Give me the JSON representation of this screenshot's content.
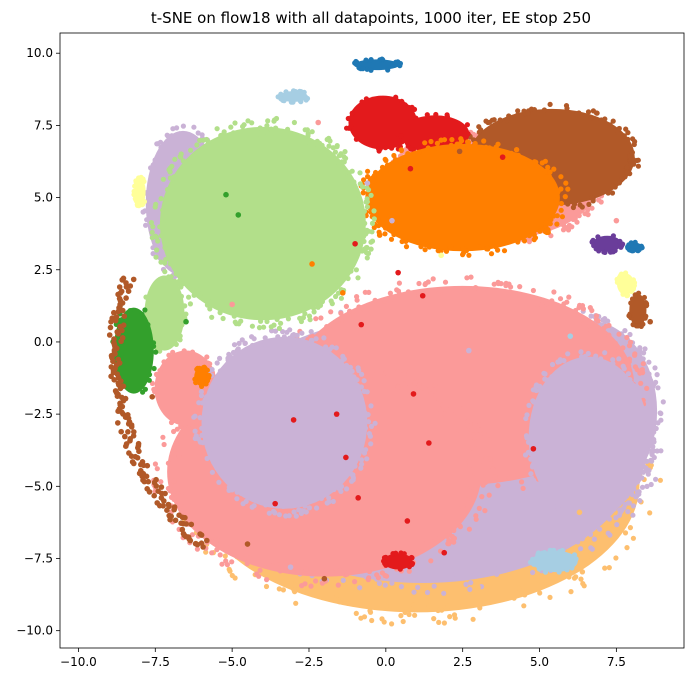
{
  "chart_data": {
    "type": "scatter",
    "title": "t-SNE on flow18 with all datapoints, 1000 iter, EE stop 250",
    "xlabel": "",
    "ylabel": "",
    "xlim": [
      -10.6,
      9.7
    ],
    "ylim": [
      -10.6,
      10.7
    ],
    "x_ticks": [
      -10,
      -7.5,
      -5,
      -2.5,
      0,
      2.5,
      5,
      7.5
    ],
    "x_tick_labels": [
      "−10.0",
      "−7.5",
      "−5.0",
      "−2.5",
      "0.0",
      "2.5",
      "5.0",
      "7.5"
    ],
    "y_ticks": [
      10,
      7.5,
      5,
      2.5,
      0,
      -2.5,
      -5,
      -7.5,
      -10
    ],
    "y_tick_labels": [
      "10.0",
      "7.5",
      "5.0",
      "2.5",
      "0.0",
      "−2.5",
      "−5.0",
      "−7.5",
      "−10.0"
    ],
    "grid": false,
    "legend": "none",
    "series": [
      {
        "name": "light-orange",
        "color": "#fdbf6f",
        "regions": [
          {
            "type": "ellipse",
            "cx": 1.0,
            "cy": -4.9,
            "rx": 7.8,
            "ry": 4.8
          }
        ]
      },
      {
        "name": "lavender-outer",
        "color": "#cab2d6",
        "regions": [
          {
            "type": "ellipse",
            "cx": 1.2,
            "cy": -3.7,
            "rx": 7.6,
            "ry": 5.0
          },
          {
            "type": "ellipse",
            "cx": 6.5,
            "cy": -2.4,
            "rx": 2.5,
            "ry": 3.4
          },
          {
            "type": "ellipse",
            "cx": -6.6,
            "cy": 4.8,
            "rx": 1.3,
            "ry": 2.7
          }
        ]
      },
      {
        "name": "pink",
        "color": "#fb9a99",
        "regions": [
          {
            "type": "ellipse",
            "cx": 2.5,
            "cy": -1.5,
            "rx": 6.0,
            "ry": 3.7
          },
          {
            "type": "ellipse",
            "cx": -2.0,
            "cy": -4.5,
            "rx": 5.5,
            "ry": 3.9
          },
          {
            "type": "ellipse",
            "cx": 3.5,
            "cy": 5.4,
            "rx": 3.6,
            "ry": 2.0
          },
          {
            "type": "ellipse",
            "cx": -6.5,
            "cy": -1.6,
            "rx": 1.1,
            "ry": 1.4
          }
        ]
      },
      {
        "name": "lavender-inner",
        "color": "#cab2d6",
        "regions": [
          {
            "type": "ellipse",
            "cx": -3.3,
            "cy": -2.8,
            "rx": 2.9,
            "ry": 3.2
          },
          {
            "type": "ellipse",
            "cx": 6.6,
            "cy": -3.3,
            "rx": 2.1,
            "ry": 3.0
          }
        ]
      },
      {
        "name": "brown",
        "color": "#b15928",
        "regions": [
          {
            "type": "ellipse",
            "cx": 5.4,
            "cy": 6.4,
            "rx": 2.9,
            "ry": 1.8
          },
          {
            "type": "ellipse",
            "cx": 8.2,
            "cy": 1.1,
            "rx": 0.3,
            "ry": 0.6
          }
        ]
      },
      {
        "name": "red",
        "color": "#e31a1c",
        "regions": [
          {
            "type": "ellipse",
            "cx": -0.1,
            "cy": 7.6,
            "rx": 1.2,
            "ry": 1.0
          },
          {
            "type": "ellipse",
            "cx": 1.6,
            "cy": 7.2,
            "rx": 1.2,
            "ry": 0.7
          },
          {
            "type": "ellipse",
            "cx": 0.4,
            "cy": -7.6,
            "rx": 0.5,
            "ry": 0.3
          }
        ]
      },
      {
        "name": "orange",
        "color": "#ff7f00",
        "regions": [
          {
            "type": "ellipse",
            "cx": 2.5,
            "cy": 5.0,
            "rx": 3.4,
            "ry": 2.0
          },
          {
            "type": "ellipse",
            "cx": -6.0,
            "cy": -1.2,
            "rx": 0.25,
            "ry": 0.35
          }
        ]
      },
      {
        "name": "light-green",
        "color": "#b2df8a",
        "regions": [
          {
            "type": "ellipse",
            "cx": -4.0,
            "cy": 4.1,
            "rx": 3.6,
            "ry": 3.6
          },
          {
            "type": "ellipse",
            "cx": -7.2,
            "cy": 1.0,
            "rx": 0.7,
            "ry": 1.4
          }
        ]
      },
      {
        "name": "green",
        "color": "#33a02c",
        "regions": [
          {
            "type": "ellipse",
            "cx": -8.2,
            "cy": -0.3,
            "rx": 0.7,
            "ry": 1.6
          }
        ]
      },
      {
        "name": "blue",
        "color": "#1f78b4",
        "regions": [
          {
            "type": "ellipse",
            "cx": -0.3,
            "cy": 9.6,
            "rx": 0.8,
            "ry": 0.2
          },
          {
            "type": "ellipse",
            "cx": 8.1,
            "cy": 3.3,
            "rx": 0.25,
            "ry": 0.15
          }
        ]
      },
      {
        "name": "light-blue",
        "color": "#a6cee3",
        "regions": [
          {
            "type": "ellipse",
            "cx": 5.5,
            "cy": -7.6,
            "rx": 0.8,
            "ry": 0.4
          },
          {
            "type": "ellipse",
            "cx": -3.0,
            "cy": 8.5,
            "rx": 0.5,
            "ry": 0.2
          }
        ]
      },
      {
        "name": "purple",
        "color": "#6a3d9a",
        "regions": [
          {
            "type": "ellipse",
            "cx": 7.2,
            "cy": 3.4,
            "rx": 0.5,
            "ry": 0.3
          }
        ]
      },
      {
        "name": "yellow",
        "color": "#ffff99",
        "regions": [
          {
            "type": "ellipse",
            "cx": -8.0,
            "cy": 5.2,
            "rx": 0.2,
            "ry": 0.5
          },
          {
            "type": "ellipse",
            "cx": 7.8,
            "cy": 2.0,
            "rx": 0.3,
            "ry": 0.4
          }
        ]
      },
      {
        "name": "brown-arc-left",
        "color": "#b15928",
        "style": "arc-band",
        "regions": [
          {
            "type": "arc",
            "cx": 0.0,
            "cy": -0.5,
            "r": 8.8,
            "start_deg": 162,
            "end_deg": 228,
            "width": 0.45
          }
        ]
      }
    ],
    "stray_points": [
      {
        "x": -2.4,
        "y": 2.7,
        "color": "#ff7f00"
      },
      {
        "x": -1.0,
        "y": 3.4,
        "color": "#e31a1c"
      },
      {
        "x": -0.2,
        "y": 3.7,
        "color": "#ff7f00"
      },
      {
        "x": 0.4,
        "y": 2.4,
        "color": "#e31a1c"
      },
      {
        "x": 1.2,
        "y": 1.6,
        "color": "#e31a1c"
      },
      {
        "x": -1.4,
        "y": 1.7,
        "color": "#ff7f00"
      },
      {
        "x": -5.2,
        "y": 5.1,
        "color": "#33a02c"
      },
      {
        "x": -4.8,
        "y": 4.4,
        "color": "#33a02c"
      },
      {
        "x": -3.0,
        "y": -2.7,
        "color": "#e31a1c"
      },
      {
        "x": -1.6,
        "y": -2.5,
        "color": "#e31a1c"
      },
      {
        "x": -1.3,
        "y": -4.0,
        "color": "#e31a1c"
      },
      {
        "x": 0.9,
        "y": -1.8,
        "color": "#e31a1c"
      },
      {
        "x": 1.4,
        "y": -3.5,
        "color": "#e31a1c"
      },
      {
        "x": -0.9,
        "y": -5.4,
        "color": "#e31a1c"
      },
      {
        "x": 0.7,
        "y": -6.2,
        "color": "#e31a1c"
      },
      {
        "x": 4.8,
        "y": -3.7,
        "color": "#e31a1c"
      },
      {
        "x": 2.4,
        "y": 6.6,
        "color": "#b15928"
      },
      {
        "x": 0.8,
        "y": 6.0,
        "color": "#e31a1c"
      },
      {
        "x": 3.8,
        "y": 6.4,
        "color": "#e31a1c"
      },
      {
        "x": 1.8,
        "y": 3.0,
        "color": "#ffff99"
      },
      {
        "x": -3.6,
        "y": -5.6,
        "color": "#e31a1c"
      },
      {
        "x": -2.2,
        "y": 7.6,
        "color": "#fb9a99"
      },
      {
        "x": -4.5,
        "y": -7.0,
        "color": "#b15928"
      },
      {
        "x": -2.0,
        "y": -8.2,
        "color": "#b15928"
      },
      {
        "x": 3.0,
        "y": -8.5,
        "color": "#fdbf6f"
      },
      {
        "x": 6.0,
        "y": 0.2,
        "color": "#a6cee3"
      },
      {
        "x": 8.6,
        "y": 0.7,
        "color": "#b15928"
      },
      {
        "x": -7.6,
        "y": -1.9,
        "color": "#b15928"
      },
      {
        "x": -5.0,
        "y": 1.3,
        "color": "#fb9a99"
      },
      {
        "x": 2.7,
        "y": -0.3,
        "color": "#cab2d6"
      },
      {
        "x": -6.5,
        "y": 0.7,
        "color": "#33a02c"
      },
      {
        "x": 0.2,
        "y": 4.2,
        "color": "#cab2d6"
      },
      {
        "x": -0.6,
        "y": 5.5,
        "color": "#cab2d6"
      },
      {
        "x": 7.5,
        "y": 4.2,
        "color": "#fb9a99"
      },
      {
        "x": -3.1,
        "y": -7.8,
        "color": "#cab2d6"
      },
      {
        "x": 1.9,
        "y": -7.3,
        "color": "#e31a1c"
      },
      {
        "x": 6.3,
        "y": -5.9,
        "color": "#fdbf6f"
      },
      {
        "x": -0.8,
        "y": 0.6,
        "color": "#e31a1c"
      }
    ]
  }
}
